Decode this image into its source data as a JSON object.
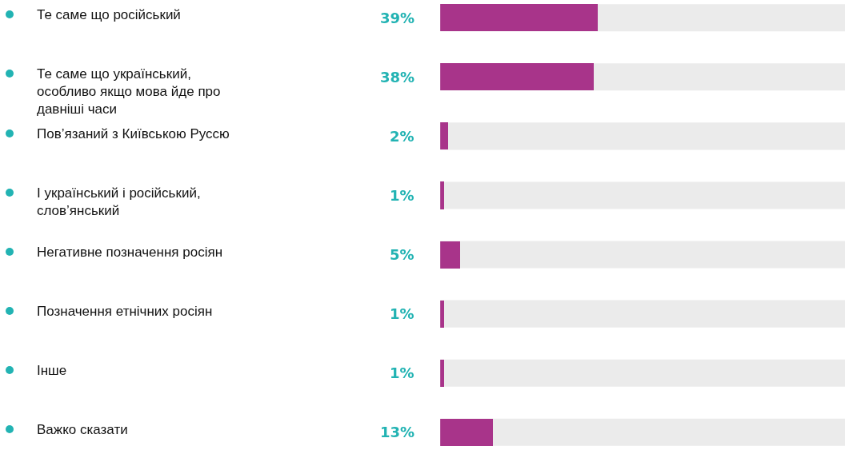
{
  "chart_data": {
    "type": "bar",
    "orientation": "horizontal",
    "categories": [
      "Те саме що російський",
      "Те саме що український, особливо якщо мова йде про давніші часи",
      "Пов’язаний з Київською Руссю",
      "І український і російський, слов’янський",
      "Негативне позначення росіян",
      "Позначення етнічних росіян",
      "Інше",
      "Важко сказати"
    ],
    "series": [
      {
        "color": "#a8348a",
        "values": [
          39,
          38,
          2,
          1,
          5,
          1,
          1,
          13
        ],
        "value_labels": [
          "39%",
          "38%",
          "2%",
          "1%",
          "5%",
          "1%",
          "1%",
          "13%"
        ]
      }
    ],
    "bands": [
      {
        "axis": "x",
        "from": 0,
        "to": 100,
        "color": "#ebebeb"
      }
    ],
    "xlim": [
      0,
      100
    ]
  }
}
